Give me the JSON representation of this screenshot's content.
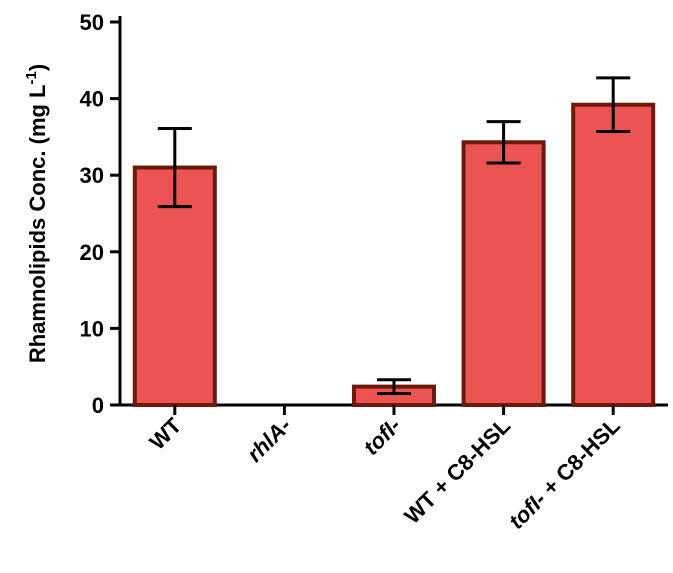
{
  "chart_data": {
    "type": "bar",
    "categories": [
      {
        "label": "WT",
        "italic_part": "",
        "rest": "WT"
      },
      {
        "label": "rhlA-",
        "italic_part": "rhlA-",
        "rest": ""
      },
      {
        "label": "tofI-",
        "italic_part": "tofI-",
        "rest": ""
      },
      {
        "label": "WT + C8-HSL",
        "italic_part": "",
        "rest": "WT + C8-HSL"
      },
      {
        "label": "tofI- + C8-HSL",
        "italic_part": "tofI-",
        "rest": " + C8-HSL"
      }
    ],
    "values": [
      31,
      0,
      2.4,
      34.3,
      39.2
    ],
    "errors": [
      5.1,
      0,
      0.9,
      2.7,
      3.5
    ],
    "ylabel": "Rhamnolipids Conc. (mg L",
    "ylabel_superscript": "-1",
    "ylabel_close": ")",
    "ylim": [
      0,
      50
    ],
    "yticks": [
      "0",
      "10",
      "20",
      "30",
      "40",
      "50"
    ],
    "bar_fill": "#ec5454",
    "bar_stroke": "#6b1a0c",
    "grid": false,
    "legend": "none"
  }
}
